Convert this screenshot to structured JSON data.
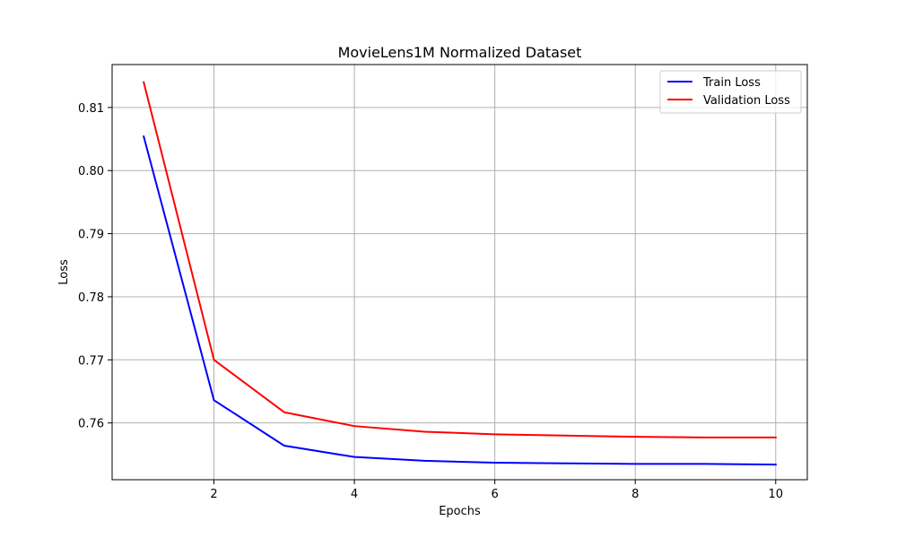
{
  "chart_data": {
    "type": "line",
    "title": "MovieLens1M Normalized Dataset",
    "xlabel": "Epochs",
    "ylabel": "Loss",
    "x": [
      1,
      2,
      3,
      4,
      5,
      6,
      7,
      8,
      9,
      10
    ],
    "xlim": [
      0.55,
      10.45
    ],
    "ylim": [
      0.751,
      0.8168
    ],
    "xticks": [
      2,
      4,
      6,
      8,
      10
    ],
    "xtick_labels": [
      "2",
      "4",
      "6",
      "8",
      "10"
    ],
    "yticks": [
      0.76,
      0.77,
      0.78,
      0.79,
      0.8,
      0.81
    ],
    "ytick_labels": [
      "0.76",
      "0.77",
      "0.78",
      "0.79",
      "0.80",
      "0.81"
    ],
    "grid": true,
    "legend_position": "top-right",
    "series": [
      {
        "name": "Train Loss",
        "color": "#0000ff",
        "values": [
          0.8054,
          0.7636,
          0.7564,
          0.7546,
          0.754,
          0.7537,
          0.7536,
          0.7535,
          0.7535,
          0.7534
        ]
      },
      {
        "name": "Validation Loss",
        "color": "#ff0000",
        "values": [
          0.814,
          0.77,
          0.7617,
          0.7595,
          0.7586,
          0.7582,
          0.758,
          0.7578,
          0.7577,
          0.7577
        ]
      }
    ]
  }
}
